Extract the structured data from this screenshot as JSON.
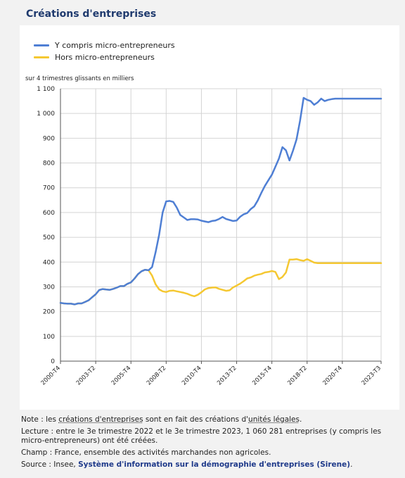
{
  "title": "Créations d'entreprises",
  "chart_data": {
    "type": "line",
    "unit_label": "sur 4 trimestres glissants en milliers",
    "ylim": [
      0,
      1100
    ],
    "yticks": [
      0,
      100,
      200,
      300,
      400,
      500,
      600,
      700,
      800,
      900,
      1000,
      1100
    ],
    "ytick_labels": [
      "0",
      "100",
      "200",
      "300",
      "400",
      "500",
      "600",
      "700",
      "800",
      "900",
      "1 000",
      "1 100"
    ],
    "x_tick_labels": [
      "2000-T4",
      "2003-T2",
      "2005-T4",
      "2008-T2",
      "2010-T4",
      "2013-T2",
      "2015-T4",
      "2018-T2",
      "2020-T4",
      "2023-T3"
    ],
    "x_tick_index": [
      0,
      10,
      20,
      30,
      40,
      50,
      60,
      70,
      80,
      91
    ],
    "grid": true,
    "legend_position": "top-left",
    "series": [
      {
        "name": "Y compris micro-entrepreneurs",
        "color": "#4f7fd4",
        "values": [
          235,
          233,
          232,
          232,
          229,
          233,
          233,
          239,
          246,
          258,
          270,
          287,
          291,
          289,
          288,
          292,
          297,
          303,
          303,
          312,
          318,
          333,
          351,
          363,
          369,
          367,
          380,
          440,
          510,
          600,
          645,
          647,
          643,
          620,
          590,
          580,
          570,
          573,
          573,
          572,
          567,
          564,
          561,
          566,
          568,
          574,
          582,
          574,
          570,
          566,
          568,
          583,
          593,
          598,
          614,
          625,
          649,
          679,
          707,
          730,
          753,
          785,
          818,
          864,
          851,
          810,
          850,
          895,
          970,
          1063,
          1055,
          1050,
          1035,
          1045,
          1060,
          1050,
          1055,
          1058,
          1060,
          1060,
          1060,
          1060,
          1060,
          1060,
          1060,
          1060,
          1060,
          1060,
          1060,
          1060,
          1060,
          1060
        ]
      },
      {
        "name": "Hors micro-entrepreneurs",
        "color": "#f5c832",
        "values": [
          235,
          233,
          232,
          232,
          229,
          233,
          233,
          239,
          246,
          258,
          270,
          287,
          291,
          289,
          288,
          292,
          297,
          303,
          303,
          312,
          318,
          333,
          351,
          363,
          369,
          367,
          345,
          310,
          290,
          282,
          279,
          284,
          285,
          282,
          279,
          276,
          272,
          266,
          262,
          268,
          278,
          290,
          295,
          297,
          298,
          292,
          288,
          284,
          286,
          298,
          305,
          313,
          323,
          334,
          338,
          345,
          349,
          352,
          358,
          360,
          364,
          360,
          331,
          340,
          358,
          410,
          410,
          412,
          408,
          405,
          412,
          405,
          398,
          396,
          396,
          396,
          396,
          396,
          396,
          396,
          396,
          396,
          396,
          396,
          396,
          396,
          396,
          396,
          396,
          396,
          396,
          396
        ]
      }
    ]
  },
  "notes": {
    "note_prefix": "Note : les ",
    "note_link1": "créations d'entreprises",
    "note_mid": " sont en fait des créations d'",
    "note_link2": "unités légales",
    "note_end": ".",
    "lecture": "Lecture : entre le 3e trimestre 2022 et le 3e trimestre 2023, 1 060 281 entreprises (y compris les micro-entrepreneurs) ont été créées.",
    "champ": "Champ : France, ensemble des activités marchandes non agricoles.",
    "source_prefix": "Source : Insee, ",
    "source_link": "Système d'information sur la démographie d'entreprises (Sirene)",
    "source_end": "."
  }
}
